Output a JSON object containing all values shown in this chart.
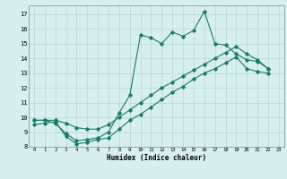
{
  "xlabel": "Humidex (Indice chaleur)",
  "background_color": "#d8efef",
  "grid_color": "#b8d4d4",
  "line_color": "#1a7a6a",
  "xlim": [
    -0.5,
    23.5
  ],
  "ylim": [
    8,
    17.6
  ],
  "xticks": [
    0,
    1,
    2,
    3,
    4,
    5,
    6,
    7,
    8,
    9,
    10,
    11,
    12,
    13,
    14,
    15,
    16,
    17,
    18,
    19,
    20,
    21,
    22,
    23
  ],
  "yticks": [
    8,
    9,
    10,
    11,
    12,
    13,
    14,
    15,
    16,
    17
  ],
  "series1_y": [
    9.8,
    9.8,
    9.6,
    8.9,
    8.4,
    8.5,
    8.6,
    9.0,
    10.3,
    11.5,
    15.6,
    15.4,
    15.0,
    15.8,
    15.5,
    15.9,
    17.2,
    15.0,
    14.9,
    14.3,
    13.9,
    13.8,
    13.3,
    null
  ],
  "series2_y": [
    9.8,
    9.8,
    9.8,
    9.6,
    9.3,
    9.2,
    9.2,
    9.5,
    10.0,
    10.5,
    11.0,
    11.5,
    12.0,
    12.4,
    12.8,
    13.2,
    13.6,
    14.0,
    14.4,
    14.8,
    14.3,
    13.9,
    13.3,
    null
  ],
  "series3_y": [
    9.5,
    9.6,
    9.7,
    8.7,
    8.2,
    8.3,
    8.5,
    8.6,
    9.2,
    9.8,
    10.2,
    10.7,
    11.2,
    11.7,
    12.1,
    12.6,
    13.0,
    13.3,
    13.7,
    14.1,
    13.3,
    13.1,
    13.0,
    null
  ]
}
